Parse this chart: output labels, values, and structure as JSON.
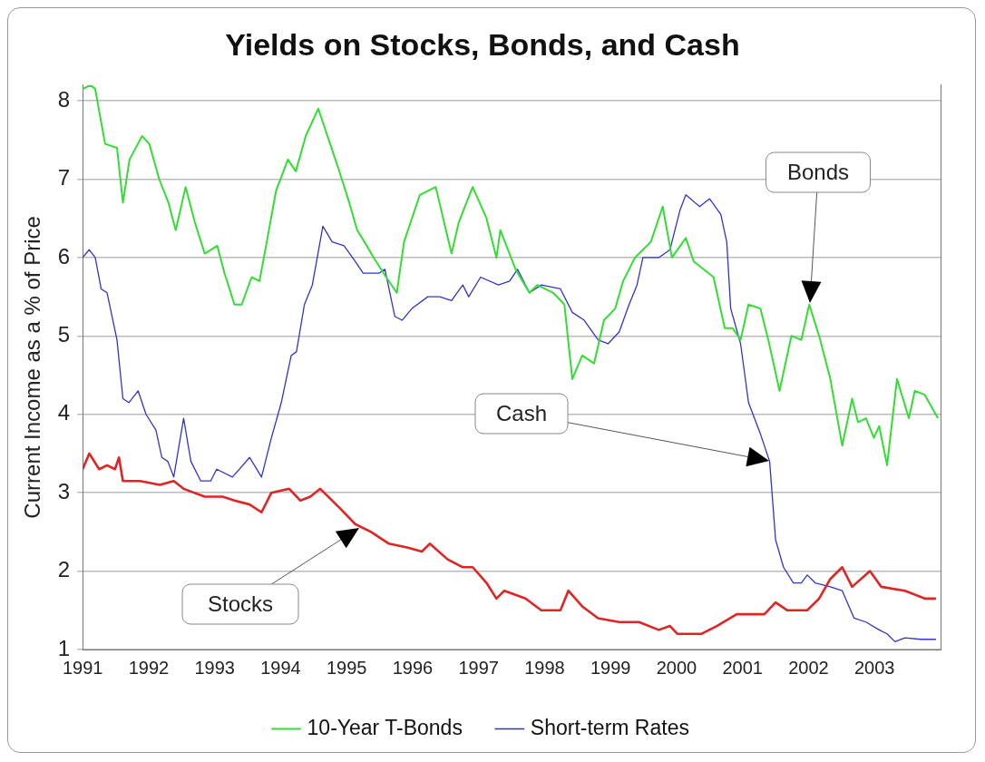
{
  "chart_data": {
    "type": "line",
    "title": "Yields on Stocks, Bonds, and Cash",
    "ylabel": "Current Income as a % of Price",
    "xlim": [
      1991,
      2004
    ],
    "xticks": [
      1991,
      1992,
      1993,
      1994,
      1995,
      1996,
      1997,
      1998,
      1999,
      2000,
      2001,
      2002,
      2003
    ],
    "ylim": [
      1,
      8.2
    ],
    "yticks": [
      1,
      2,
      3,
      4,
      5,
      6,
      7,
      8
    ],
    "grid": "y",
    "legend": "bottom",
    "marker": "none",
    "line_style": "solid",
    "series": [
      {
        "color": "#e02424",
        "x": [
          1991.0,
          1991.1,
          1991.25,
          1991.37,
          1991.49,
          1991.55,
          1991.61,
          1991.87,
          1992.17,
          1992.38,
          1992.53,
          1992.85,
          1993.12,
          1993.3,
          1993.53,
          1993.71,
          1993.86,
          1994.13,
          1994.3,
          1994.45,
          1994.6,
          1994.9,
          1995.13,
          1995.37,
          1995.64,
          1995.93,
          1996.14,
          1996.26,
          1996.53,
          1996.76,
          1996.91,
          1997.12,
          1997.27,
          1997.39,
          1997.71,
          1997.95,
          1998.24,
          1998.36,
          1998.57,
          1998.81,
          1999.13,
          1999.43,
          1999.73,
          1999.9,
          2000.01,
          2000.38,
          2000.61,
          2000.91,
          2001.09,
          2001.33,
          2001.5,
          2001.68,
          2001.98,
          2002.16,
          2002.33,
          2002.51,
          2002.66,
          2002.93,
          2003.1,
          2003.46,
          2003.76,
          2003.93
        ],
        "values": [
          3.3,
          3.5,
          3.3,
          3.35,
          3.3,
          3.45,
          3.15,
          3.15,
          3.1,
          3.15,
          3.05,
          2.95,
          2.95,
          2.9,
          2.85,
          2.75,
          3.0,
          3.05,
          2.9,
          2.95,
          3.05,
          2.8,
          2.6,
          2.5,
          2.35,
          2.3,
          2.25,
          2.35,
          2.15,
          2.05,
          2.05,
          1.85,
          1.65,
          1.75,
          1.65,
          1.5,
          1.5,
          1.75,
          1.55,
          1.4,
          1.35,
          1.35,
          1.25,
          1.3,
          1.2,
          1.2,
          1.3,
          1.45,
          1.45,
          1.45,
          1.6,
          1.5,
          1.5,
          1.65,
          1.9,
          2.05,
          1.8,
          2.0,
          1.8,
          1.75,
          1.65,
          1.65
        ]
      },
      {
        "name": "10-Year T-Bonds",
        "color": "#33dd33",
        "x": [
          1991.0,
          1991.12,
          1991.19,
          1991.34,
          1991.52,
          1991.61,
          1991.71,
          1991.9,
          1992.01,
          1992.16,
          1992.3,
          1992.41,
          1992.56,
          1992.7,
          1992.85,
          1993.04,
          1993.15,
          1993.3,
          1993.41,
          1993.56,
          1993.68,
          1993.79,
          1993.93,
          1994.11,
          1994.23,
          1994.38,
          1994.57,
          1994.75,
          1994.87,
          1995.04,
          1995.16,
          1995.27,
          1995.41,
          1995.56,
          1995.76,
          1995.87,
          1996.11,
          1996.35,
          1996.59,
          1996.7,
          1996.91,
          1997.12,
          1997.27,
          1997.33,
          1997.56,
          1997.77,
          1997.89,
          1998.13,
          1998.3,
          1998.42,
          1998.57,
          1998.75,
          1998.9,
          1999.07,
          1999.19,
          1999.37,
          1999.61,
          1999.79,
          1999.93,
          2000.14,
          2000.26,
          2000.56,
          2000.73,
          2000.85,
          2000.97,
          2001.09,
          2001.27,
          2001.39,
          2001.56,
          2001.74,
          2001.89,
          2002.01,
          2002.16,
          2002.33,
          2002.51,
          2002.66,
          2002.75,
          2002.87,
          2002.99,
          2003.07,
          2003.19,
          2003.34,
          2003.52,
          2003.61,
          2003.76,
          2003.96
        ],
        "values": [
          8.15,
          8.2,
          8.15,
          7.45,
          7.4,
          6.7,
          7.25,
          7.55,
          7.45,
          7.0,
          6.7,
          6.35,
          6.9,
          6.45,
          6.05,
          6.15,
          5.8,
          5.4,
          5.4,
          5.75,
          5.7,
          6.2,
          6.85,
          7.25,
          7.1,
          7.55,
          7.9,
          7.45,
          7.15,
          6.7,
          6.35,
          6.2,
          6.0,
          5.8,
          5.55,
          6.2,
          6.8,
          6.9,
          6.05,
          6.45,
          6.9,
          6.5,
          6.0,
          6.35,
          5.85,
          5.55,
          5.65,
          5.55,
          5.4,
          4.45,
          4.75,
          4.65,
          5.2,
          5.35,
          5.7,
          6.0,
          6.2,
          6.65,
          6.0,
          6.25,
          5.95,
          5.75,
          5.1,
          5.1,
          4.95,
          5.4,
          5.35,
          4.95,
          4.3,
          5.0,
          4.95,
          5.4,
          5.0,
          4.45,
          3.6,
          4.2,
          3.9,
          3.95,
          3.7,
          3.85,
          3.35,
          4.45,
          3.95,
          4.3,
          4.25,
          3.95
        ]
      },
      {
        "name": "Short-term Rates",
        "color": "#3333cc",
        "x": [
          1991.0,
          1991.1,
          1991.19,
          1991.28,
          1991.37,
          1991.52,
          1991.61,
          1991.7,
          1991.84,
          1991.96,
          1992.11,
          1992.2,
          1992.29,
          1992.38,
          1992.53,
          1992.64,
          1992.79,
          1992.94,
          1993.03,
          1993.27,
          1993.53,
          1993.71,
          1993.86,
          1994.01,
          1994.16,
          1994.24,
          1994.36,
          1994.48,
          1994.64,
          1994.78,
          1994.96,
          1995.13,
          1995.25,
          1995.49,
          1995.58,
          1995.73,
          1995.84,
          1995.99,
          1996.23,
          1996.41,
          1996.59,
          1996.76,
          1996.85,
          1997.03,
          1997.3,
          1997.47,
          1997.59,
          1997.77,
          1997.95,
          1998.24,
          1998.42,
          1998.6,
          1998.81,
          1998.96,
          1999.13,
          1999.28,
          1999.4,
          1999.49,
          1999.73,
          1999.9,
          2000.05,
          2000.14,
          2000.35,
          2000.5,
          2000.67,
          2000.76,
          2000.82,
          2000.97,
          2001.09,
          2001.27,
          2001.41,
          2001.5,
          2001.62,
          2001.77,
          2001.89,
          2001.98,
          2002.1,
          2002.33,
          2002.51,
          2002.69,
          2002.87,
          2003.07,
          2003.19,
          2003.31,
          2003.46,
          2003.7,
          2003.93
        ],
        "values": [
          6.0,
          6.1,
          6.0,
          5.6,
          5.55,
          4.95,
          4.2,
          4.15,
          4.3,
          4.0,
          3.8,
          3.45,
          3.4,
          3.2,
          3.95,
          3.4,
          3.15,
          3.15,
          3.3,
          3.2,
          3.45,
          3.2,
          3.7,
          4.15,
          4.75,
          4.8,
          5.4,
          5.65,
          6.4,
          6.2,
          6.15,
          5.95,
          5.8,
          5.8,
          5.85,
          5.25,
          5.2,
          5.35,
          5.5,
          5.5,
          5.45,
          5.65,
          5.5,
          5.75,
          5.65,
          5.7,
          5.85,
          5.55,
          5.65,
          5.6,
          5.3,
          5.2,
          4.95,
          4.9,
          5.05,
          5.4,
          5.65,
          6.0,
          6.0,
          6.1,
          6.6,
          6.8,
          6.65,
          6.75,
          6.55,
          6.2,
          5.35,
          4.9,
          4.15,
          3.75,
          3.4,
          2.4,
          2.05,
          1.85,
          1.85,
          1.95,
          1.85,
          1.8,
          1.75,
          1.4,
          1.35,
          1.25,
          1.2,
          1.1,
          1.15,
          1.13,
          1.13
        ]
      }
    ],
    "annotations": [
      "Bonds",
      "Cash",
      "Stocks"
    ]
  }
}
